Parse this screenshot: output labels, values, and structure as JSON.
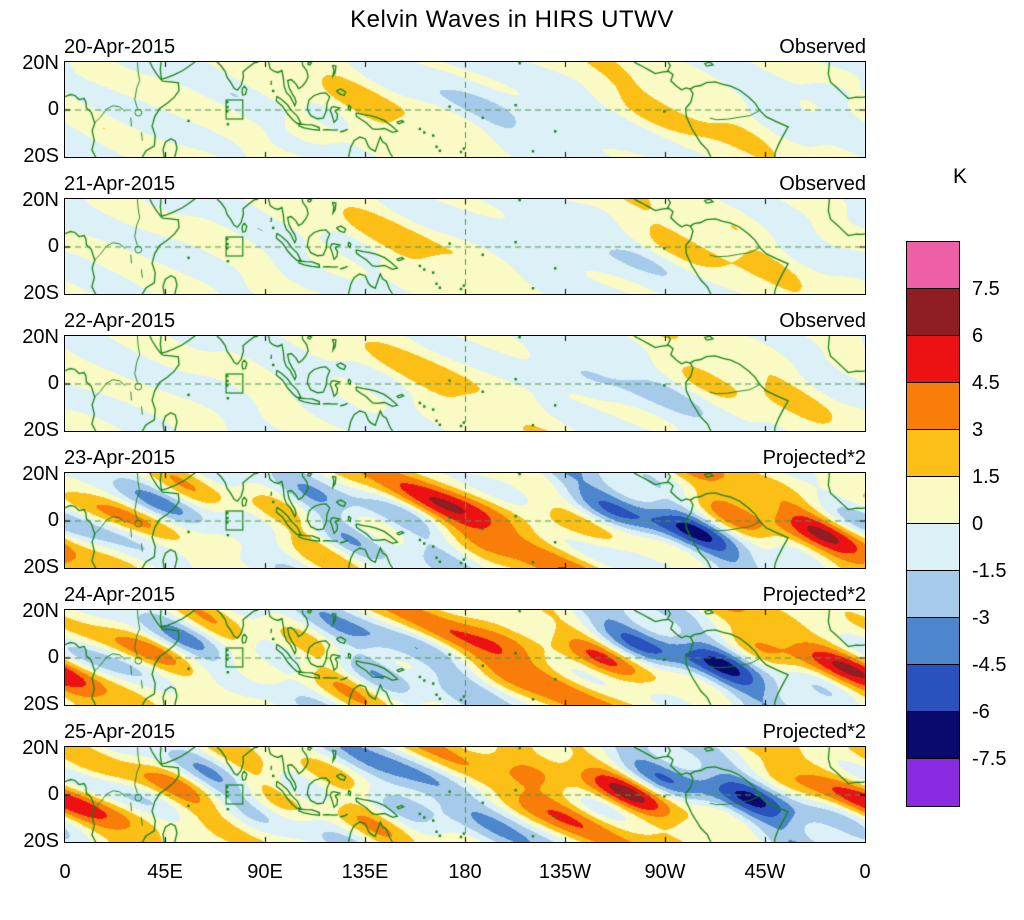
{
  "title": "Kelvin Waves in HIRS UTWV",
  "axes": {
    "x_tick_labels": [
      "0",
      "45E",
      "90E",
      "135E",
      "180",
      "135W",
      "90W",
      "45W",
      "0"
    ],
    "y_tick_labels": [
      "20N",
      "0",
      "20S"
    ]
  },
  "panels": [
    {
      "date": "20-Apr-2015",
      "source_label": "Observed"
    },
    {
      "date": "21-Apr-2015",
      "source_label": "Observed"
    },
    {
      "date": "22-Apr-2015",
      "source_label": "Observed"
    },
    {
      "date": "23-Apr-2015",
      "source_label": "Projected*2"
    },
    {
      "date": "24-Apr-2015",
      "source_label": "Projected*2"
    },
    {
      "date": "25-Apr-2015",
      "source_label": "Projected*2"
    }
  ],
  "colorbar": {
    "unit_label": "K",
    "tick_labels": [
      "7.5",
      "6",
      "4.5",
      "3",
      "1.5",
      "0",
      "-1.5",
      "-3",
      "-4.5",
      "-6",
      "-7.5"
    ]
  },
  "chart_data": {
    "type": "heatmap",
    "title": "Kelvin Waves in HIRS UTWV",
    "unit": "K",
    "x_axis": {
      "range_deg_east": [
        0,
        360
      ],
      "tick_labels": [
        "0",
        "45E",
        "90E",
        "135E",
        "180",
        "135W",
        "90W",
        "45W",
        "0"
      ]
    },
    "y_axis": {
      "range_deg_north": [
        -20,
        20
      ],
      "tick_labels": [
        "20N",
        "0",
        "20S"
      ]
    },
    "contour_levels": [
      -7.5,
      -6,
      -4.5,
      -3,
      -1.5,
      0,
      1.5,
      3,
      4.5,
      6,
      7.5
    ],
    "palette": [
      "#8A2BE2",
      "#0A0A6E",
      "#2A52BE",
      "#4E86CE",
      "#A6CBEA",
      "#DCF0F7",
      "#FAFAC5",
      "#FCBF15",
      "#F87D09",
      "#EC1214",
      "#8F1D21",
      "#EF5FA7"
    ],
    "palette_order": "bottom (below -7.5 K, violet) to top (above +7.5 K, pink)",
    "coast_color": "#158515",
    "gridline_color": "#4d9a4d",
    "panels": [
      {
        "date": "20-Apr-2015",
        "source": "Observed",
        "anomaly_range_K": "mostly -1.5 to +1.5, weak patches to ±3"
      },
      {
        "date": "21-Apr-2015",
        "source": "Observed",
        "anomaly_range_K": "mostly -1.5 to +1.5, weak patches to ±3"
      },
      {
        "date": "22-Apr-2015",
        "source": "Observed",
        "anomaly_range_K": "mostly -1.5 to +3, small orange cells"
      },
      {
        "date": "23-Apr-2015",
        "source": "Projected*2",
        "anomaly_range_K": "-4.5 to +6, strong orange/red and blue cells"
      },
      {
        "date": "24-Apr-2015",
        "source": "Projected*2",
        "anomaly_range_K": "-4.5 to +6, strong orange and blue cells"
      },
      {
        "date": "25-Apr-2015",
        "source": "Projected*2",
        "anomaly_range_K": "mostly -3 to +3, weakening pattern"
      }
    ],
    "annotations": {
      "equator_dashed_line": true,
      "dateline_dashed_line_deg": 180,
      "reference_box_deg": {
        "lon_min": 72.5,
        "lon_max": 80,
        "lat_min": -4,
        "lat_max": 4
      }
    }
  }
}
